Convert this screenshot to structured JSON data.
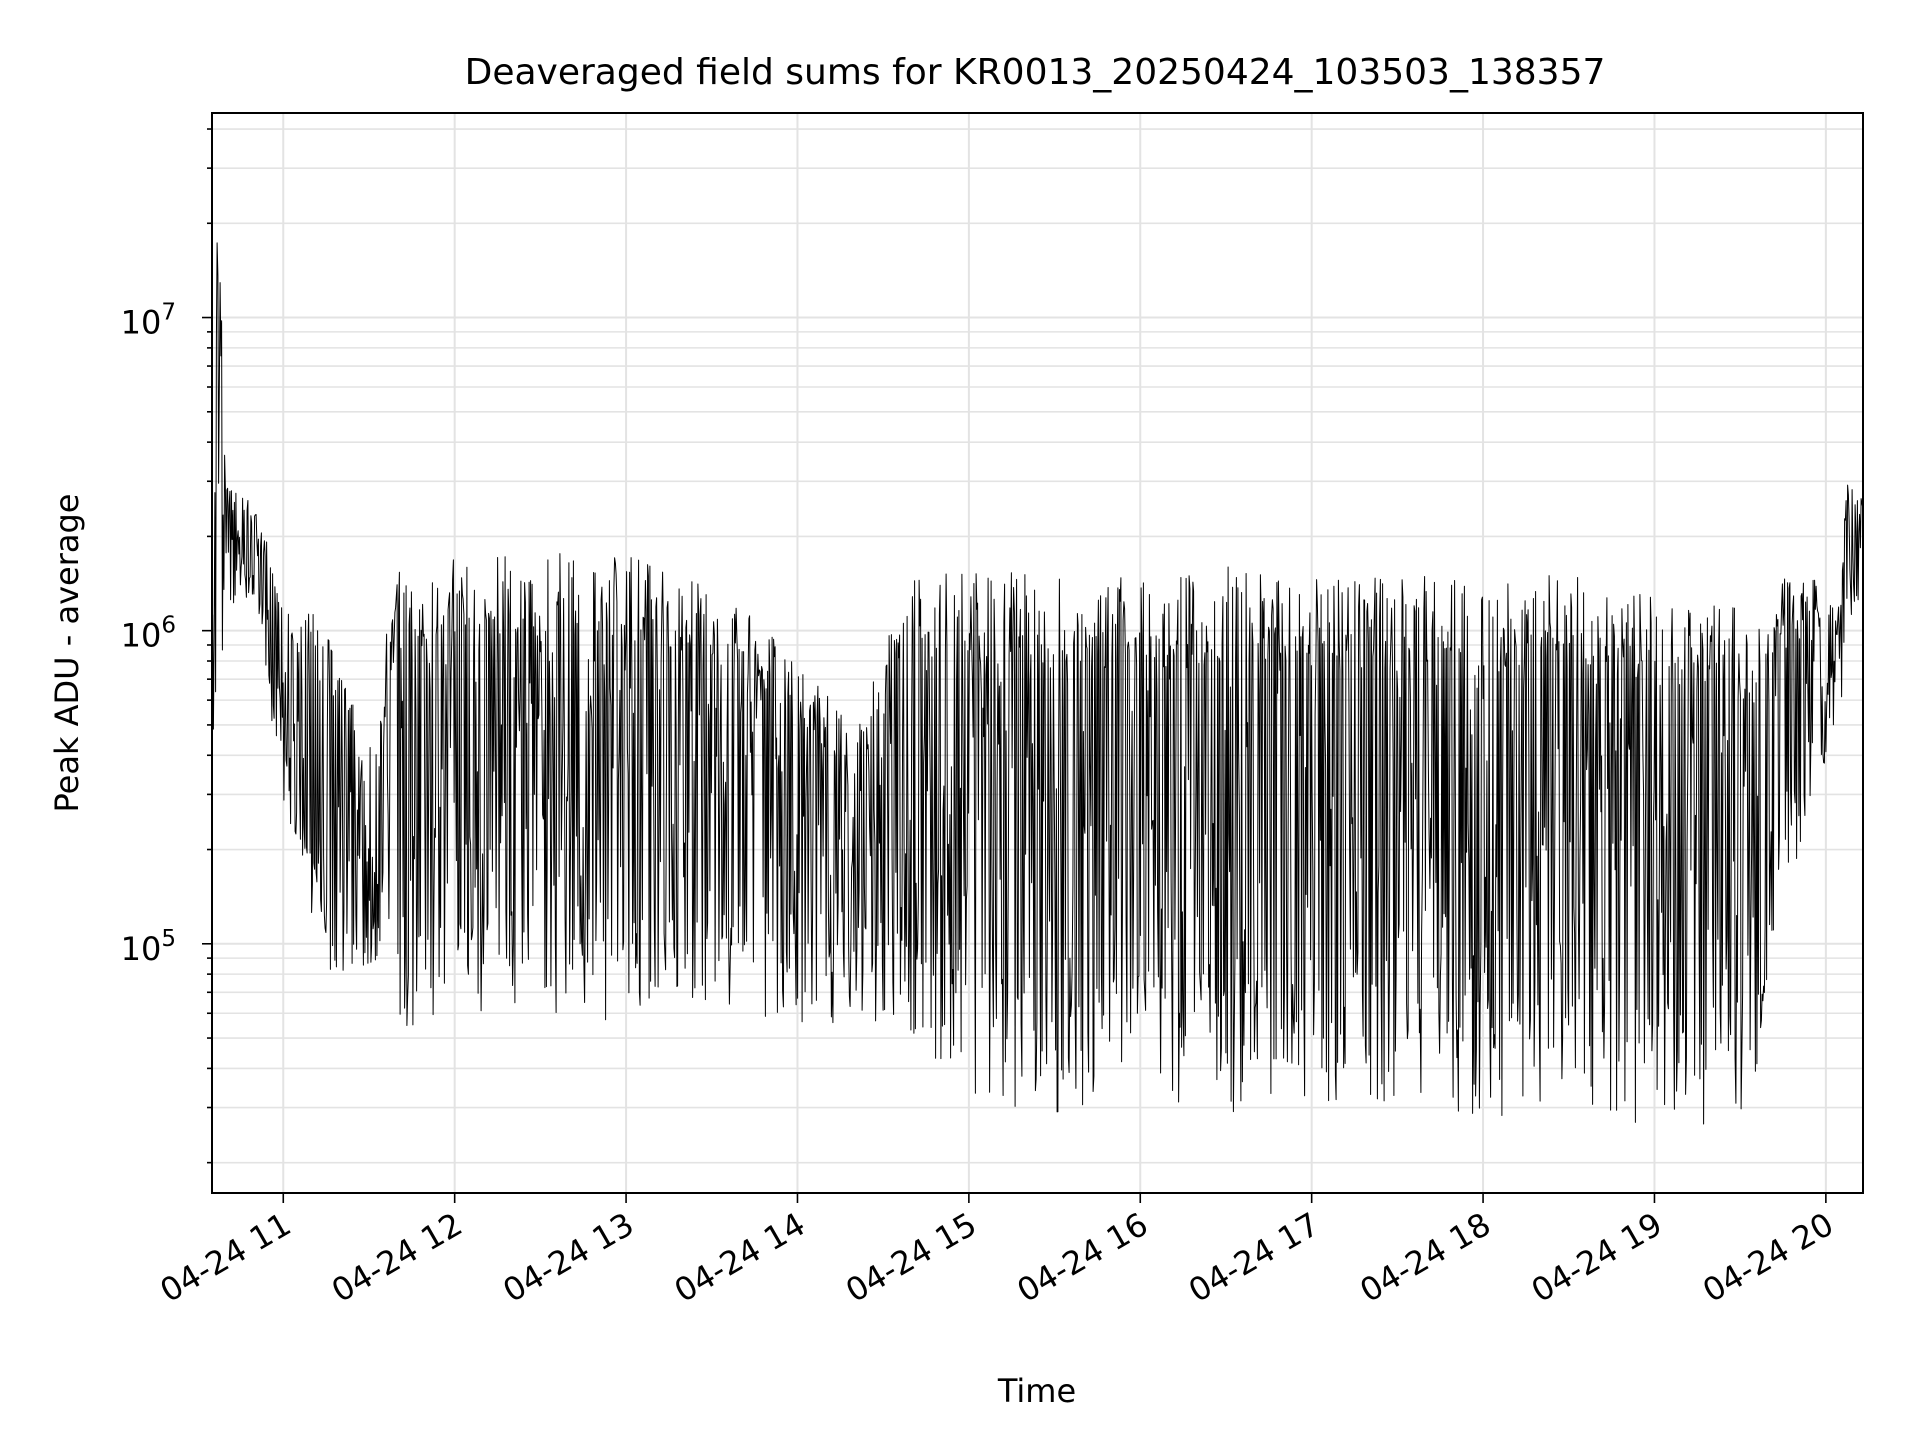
{
  "chart_data": {
    "type": "line",
    "title": "Deaveraged field sums for KR0013_20250424_103503_138357",
    "xlabel": "Time",
    "ylabel": "Peak ADU - average",
    "x_range": [
      "2025-04-24 10:35:03",
      "2025-04-24 20:13:00"
    ],
    "x_ticks": [
      {
        "t": "2025-04-24 11:00",
        "label": "04-24 11"
      },
      {
        "t": "2025-04-24 12:00",
        "label": "04-24 12"
      },
      {
        "t": "2025-04-24 13:00",
        "label": "04-24 13"
      },
      {
        "t": "2025-04-24 14:00",
        "label": "04-24 14"
      },
      {
        "t": "2025-04-24 15:00",
        "label": "04-24 15"
      },
      {
        "t": "2025-04-24 16:00",
        "label": "04-24 16"
      },
      {
        "t": "2025-04-24 17:00",
        "label": "04-24 17"
      },
      {
        "t": "2025-04-24 18:00",
        "label": "04-24 18"
      },
      {
        "t": "2025-04-24 19:00",
        "label": "04-24 19"
      },
      {
        "t": "2025-04-24 20:00",
        "label": "04-24 20"
      }
    ],
    "yscale": "log",
    "ylim": [
      16000,
      45000000
    ],
    "y_ticks": [
      {
        "value": 100000,
        "base": "10",
        "exp": "5"
      },
      {
        "value": 1000000,
        "base": "10",
        "exp": "6"
      },
      {
        "value": 10000000,
        "base": "10",
        "exp": "7"
      }
    ],
    "grid": true,
    "color": "#000000",
    "series": [
      {
        "envelope": [
          {
            "t": "2025-04-24 10:35",
            "high": 1500000,
            "low": 450000
          },
          {
            "t": "2025-04-24 10:37",
            "high": 30000000,
            "low": 500000
          },
          {
            "t": "2025-04-24 10:40",
            "high": 2900000,
            "low": 1000000
          },
          {
            "t": "2025-04-24 10:50",
            "high": 2600000,
            "low": 1300000
          },
          {
            "t": "2025-04-24 10:58",
            "high": 1500000,
            "low": 350000
          },
          {
            "t": "2025-04-24 11:05",
            "high": 1200000,
            "low": 180000
          },
          {
            "t": "2025-04-24 11:15",
            "high": 1100000,
            "low": 80000
          },
          {
            "t": "2025-04-24 11:30",
            "high": 400000,
            "low": 80000
          },
          {
            "t": "2025-04-24 11:40",
            "high": 1700000,
            "low": 55000
          },
          {
            "t": "2025-04-24 11:50",
            "high": 1700000,
            "low": 45000
          },
          {
            "t": "2025-04-24 12:10",
            "high": 1700000,
            "low": 60000
          },
          {
            "t": "2025-04-24 12:40",
            "high": 1800000,
            "low": 55000
          },
          {
            "t": "2025-04-24 13:10",
            "high": 1700000,
            "low": 60000
          },
          {
            "t": "2025-04-24 13:40",
            "high": 1200000,
            "low": 60000
          },
          {
            "t": "2025-04-24 14:00",
            "high": 800000,
            "low": 50000
          },
          {
            "t": "2025-04-24 14:20",
            "high": 500000,
            "low": 60000
          },
          {
            "t": "2025-04-24 14:40",
            "high": 1500000,
            "low": 45000
          },
          {
            "t": "2025-04-24 15:00",
            "high": 1600000,
            "low": 32000
          },
          {
            "t": "2025-04-24 15:30",
            "high": 1500000,
            "low": 27000
          },
          {
            "t": "2025-04-24 16:00",
            "high": 1500000,
            "low": 30000
          },
          {
            "t": "2025-04-24 16:30",
            "high": 1600000,
            "low": 28000
          },
          {
            "t": "2025-04-24 17:00",
            "high": 1500000,
            "low": 30000
          },
          {
            "t": "2025-04-24 17:30",
            "high": 1500000,
            "low": 30000
          },
          {
            "t": "2025-04-24 18:00",
            "high": 1500000,
            "low": 28000
          },
          {
            "t": "2025-04-24 18:30",
            "high": 1500000,
            "low": 28000
          },
          {
            "t": "2025-04-24 19:00",
            "high": 1300000,
            "low": 25000
          },
          {
            "t": "2025-04-24 19:20",
            "high": 1200000,
            "low": 24000
          },
          {
            "t": "2025-04-24 19:35",
            "high": 1200000,
            "low": 28000
          },
          {
            "t": "2025-04-24 19:45",
            "high": 1500000,
            "low": 120000
          },
          {
            "t": "2025-04-24 19:55",
            "high": 1500000,
            "low": 300000
          },
          {
            "t": "2025-04-24 20:05",
            "high": 1200000,
            "low": 500000
          },
          {
            "t": "2025-04-24 20:07",
            "high": 3000000,
            "low": 1000000
          },
          {
            "t": "2025-04-24 20:13",
            "high": 2600000,
            "low": 1200000
          }
        ]
      }
    ]
  }
}
